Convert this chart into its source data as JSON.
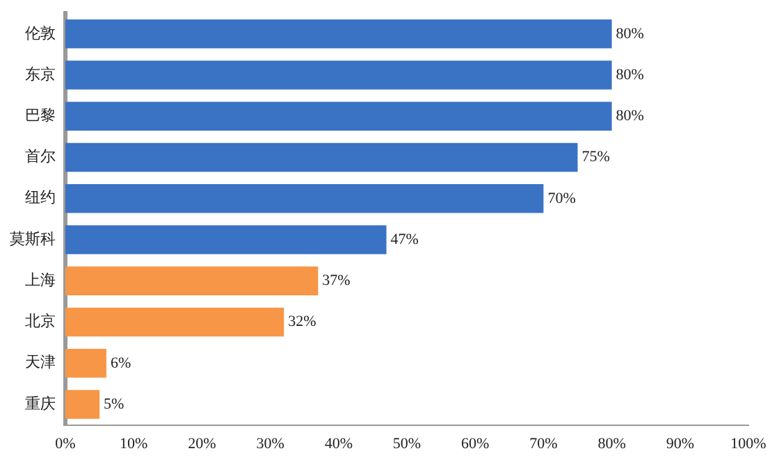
{
  "chart_data": {
    "type": "bar",
    "orientation": "horizontal",
    "categories": [
      "伦敦",
      "东京",
      "巴黎",
      "首尔",
      "纽约",
      "莫斯科",
      "上海",
      "北京",
      "天津",
      "重庆"
    ],
    "values": [
      80,
      80,
      80,
      75,
      70,
      47,
      37,
      32,
      6,
      5
    ],
    "colors": [
      "#3a72c4",
      "#3a72c4",
      "#3a72c4",
      "#3a72c4",
      "#3a72c4",
      "#3a72c4",
      "#f79646",
      "#f79646",
      "#f79646",
      "#f79646"
    ],
    "value_labels": [
      "80%",
      "80%",
      "80%",
      "75%",
      "70%",
      "47%",
      "37%",
      "32%",
      "6%",
      "5%"
    ],
    "xlim": [
      0,
      100
    ],
    "xticks": [
      {
        "value": 0,
        "label": "0%"
      },
      {
        "value": 10,
        "label": "10%"
      },
      {
        "value": 20,
        "label": "20%"
      },
      {
        "value": 30,
        "label": "30%"
      },
      {
        "value": 40,
        "label": "40%"
      },
      {
        "value": 50,
        "label": "50%"
      },
      {
        "value": 60,
        "label": "60%"
      },
      {
        "value": 70,
        "label": "70%"
      },
      {
        "value": 80,
        "label": "80%"
      },
      {
        "value": 90,
        "label": "90%"
      },
      {
        "value": 100,
        "label": "100%"
      }
    ],
    "grid": false,
    "legend": false
  }
}
